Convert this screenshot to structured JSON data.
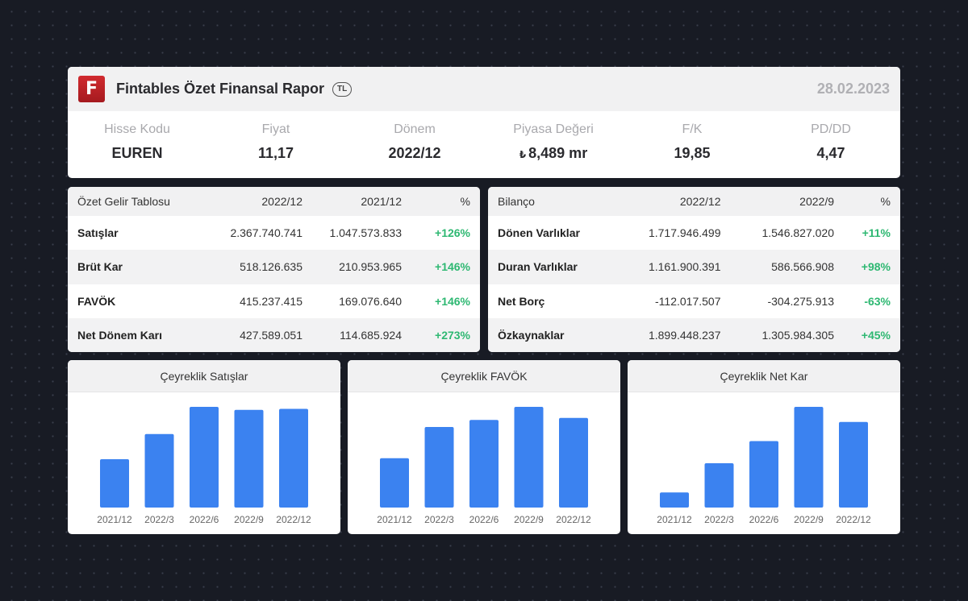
{
  "header": {
    "logo_letter": "F",
    "title": "Fintables Özet Finansal Rapor",
    "currency_badge": "TL",
    "date": "28.02.2023"
  },
  "metrics": [
    {
      "label": "Hisse Kodu",
      "value": "EUREN"
    },
    {
      "label": "Fiyat",
      "value": "11,17"
    },
    {
      "label": "Dönem",
      "value": "2022/12"
    },
    {
      "label": "Piyasa Değeri",
      "prefix": "₺",
      "value": "8,489 mr"
    },
    {
      "label": "F/K",
      "value": "19,85"
    },
    {
      "label": "PD/DD",
      "value": "4,47"
    }
  ],
  "income": {
    "headers": [
      "Özet Gelir Tablosu",
      "2022/12",
      "2021/12",
      "%"
    ],
    "rows": [
      [
        "Satışlar",
        "2.367.740.741",
        "1.047.573.833",
        "+126%"
      ],
      [
        "Brüt Kar",
        "518.126.635",
        "210.953.965",
        "+146%"
      ],
      [
        "FAVÖK",
        "415.237.415",
        "169.076.640",
        "+146%"
      ],
      [
        "Net Dönem Karı",
        "427.589.051",
        "114.685.924",
        "+273%"
      ]
    ]
  },
  "balance": {
    "headers": [
      "Bilanço",
      "2022/12",
      "2022/9",
      "%"
    ],
    "rows": [
      [
        "Dönen Varlıklar",
        "1.717.946.499",
        "1.546.827.020",
        "+11%"
      ],
      [
        "Duran Varlıklar",
        "1.161.900.391",
        "586.566.908",
        "+98%"
      ],
      [
        "Net Borç",
        "-112.017.507",
        "-304.275.913",
        "-63%"
      ],
      [
        "Özkaynaklar",
        "1.899.448.237",
        "1.305.984.305",
        "+45%"
      ]
    ]
  },
  "colors": {
    "bar": "#3b82f0",
    "positive": "#2eb872",
    "logo": "#c8232a"
  },
  "chart_data": [
    {
      "type": "bar",
      "title": "Çeyreklik Satışlar",
      "categories": [
        "2021/12",
        "2022/3",
        "2022/6",
        "2022/9",
        "2022/12"
      ],
      "values": [
        48,
        73,
        100,
        97,
        98
      ]
    },
    {
      "type": "bar",
      "title": "Çeyreklik FAVÖK",
      "categories": [
        "2021/12",
        "2022/3",
        "2022/6",
        "2022/9",
        "2022/12"
      ],
      "values": [
        49,
        80,
        87,
        100,
        89
      ]
    },
    {
      "type": "bar",
      "title": "Çeyreklik Net Kar",
      "categories": [
        "2021/12",
        "2022/3",
        "2022/6",
        "2022/9",
        "2022/12"
      ],
      "values": [
        15,
        44,
        66,
        100,
        85
      ]
    }
  ]
}
